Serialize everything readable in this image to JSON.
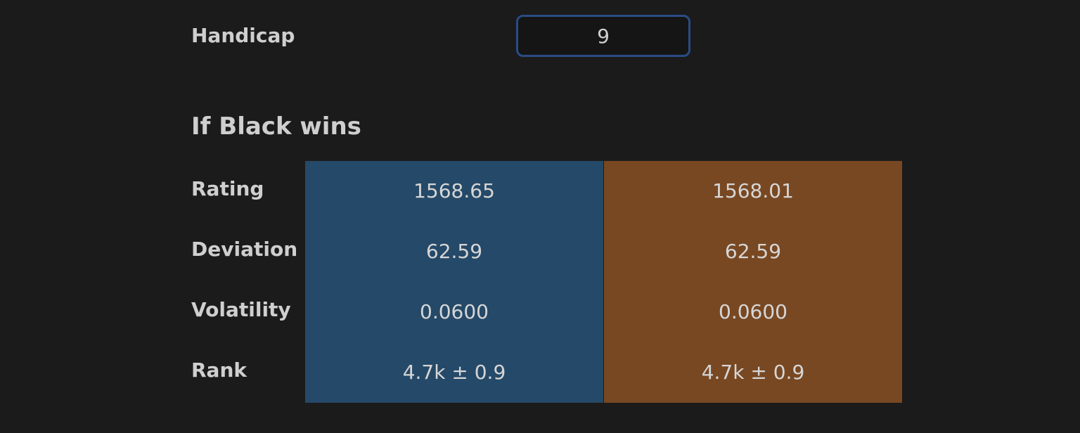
{
  "handicap": {
    "label": "Handicap",
    "value": "9"
  },
  "section": {
    "title": "If Black wins"
  },
  "table": {
    "rows": [
      [
        "Rating",
        "1568.65",
        "1568.01"
      ],
      [
        "Deviation",
        "62.59",
        "62.59"
      ],
      [
        "Volatility",
        "0.0600",
        "0.0600"
      ],
      [
        "Rank",
        "4.7k ± 0.9",
        "4.7k ± 0.9"
      ]
    ]
  }
}
